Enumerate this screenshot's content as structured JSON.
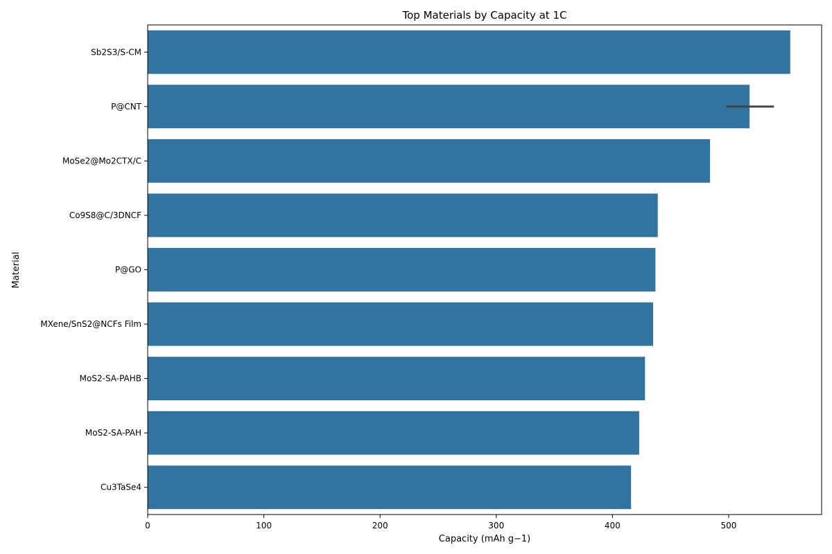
{
  "chart_data": {
    "type": "bar",
    "orientation": "horizontal",
    "title": "Top Materials by Capacity at 1C",
    "xlabel": "Capacity (mAh g−1)",
    "ylabel": "Material",
    "xlim": [
      0,
      580
    ],
    "xticks": [
      0,
      100,
      200,
      300,
      400,
      500
    ],
    "categories": [
      "Sb2S3/S-CM",
      "P@CNT",
      "MoSe2@Mo2CTX/C",
      "Co9S8@C/3DNCF",
      "P@GO",
      "MXene/SnS2@NCFs Film",
      "MoS2-SA-PAHB",
      "MoS2-SA-PAH",
      "Cu3TaSe4"
    ],
    "values": [
      553,
      518,
      484,
      439,
      437,
      435,
      428,
      423,
      416
    ],
    "error_bars": [
      null,
      [
        498,
        539
      ],
      null,
      null,
      null,
      null,
      null,
      null,
      null
    ],
    "bar_color": "#3274a1",
    "error_color": "#444444",
    "grid": false,
    "legend": "none"
  }
}
